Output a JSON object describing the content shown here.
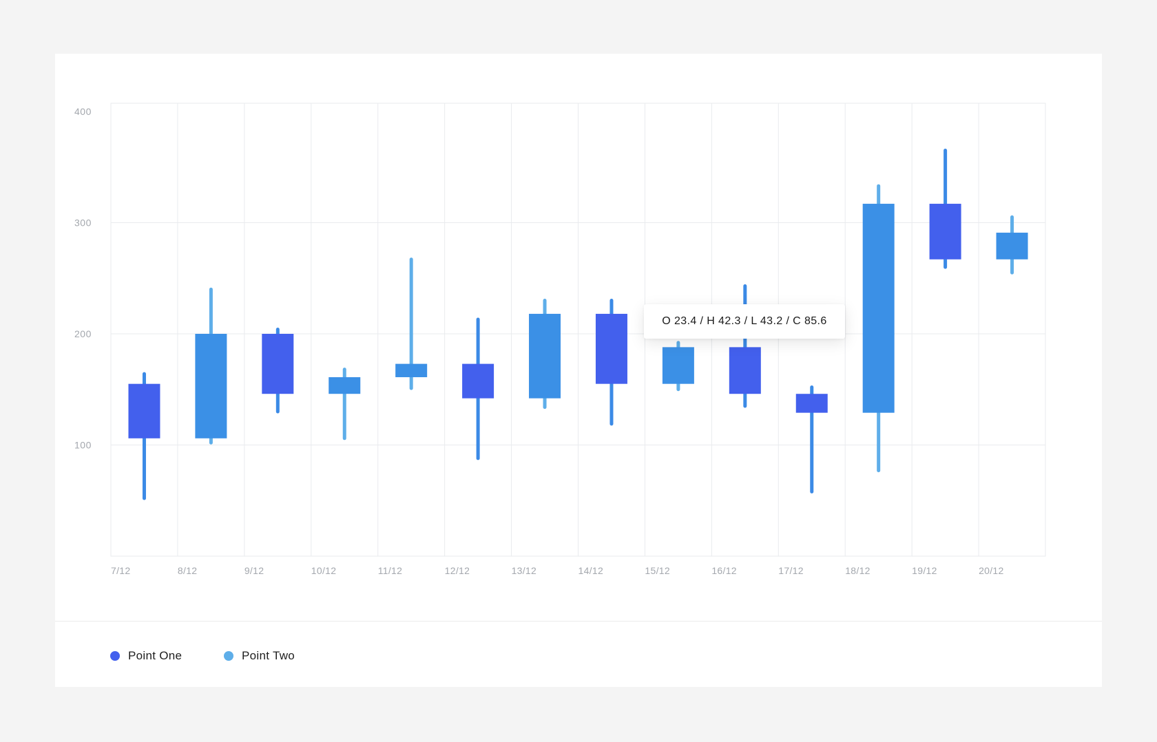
{
  "colors": {
    "point_one": "#4360ed",
    "point_two_body": "#3b90e6",
    "point_two_wick": "#5eaee9",
    "grid": "#e9ebee",
    "axis_text": "#a3a7ad"
  },
  "tooltip": {
    "text": "O 23.4 / H 42.3 / L 43.2 / C 85.6"
  },
  "legend": {
    "point_one": "Point One",
    "point_two": "Point Two"
  },
  "chart_data": {
    "type": "candlestick",
    "categories": [
      "7/12",
      "8/12",
      "9/12",
      "10/12",
      "11/12",
      "12/12",
      "13/12",
      "14/12",
      "15/12",
      "16/12",
      "17/12",
      "18/12",
      "19/12",
      "20/12"
    ],
    "y_ticks": [
      "400",
      "300",
      "200",
      "100"
    ],
    "ylim": [
      0,
      400
    ],
    "grid": true,
    "legend_position": "bottom-left",
    "candles": [
      {
        "x": "7/12",
        "series": "Point One",
        "open": 155,
        "close": 106,
        "high": 164,
        "low": 52
      },
      {
        "x": "8/12",
        "series": "Point Two",
        "open": 106,
        "close": 200,
        "high": 240,
        "low": 102
      },
      {
        "x": "9/12",
        "series": "Point One",
        "open": 200,
        "close": 146,
        "high": 204,
        "low": 130
      },
      {
        "x": "10/12",
        "series": "Point Two",
        "open": 146,
        "close": 161,
        "high": 168,
        "low": 106
      },
      {
        "x": "11/12",
        "series": "Point Two",
        "open": 161,
        "close": 173,
        "high": 267,
        "low": 151
      },
      {
        "x": "12/12",
        "series": "Point One",
        "open": 173,
        "close": 142,
        "high": 213,
        "low": 88
      },
      {
        "x": "13/12",
        "series": "Point Two",
        "open": 142,
        "close": 218,
        "high": 230,
        "low": 134
      },
      {
        "x": "14/12",
        "series": "Point One",
        "open": 218,
        "close": 155,
        "high": 230,
        "low": 119
      },
      {
        "x": "15/12",
        "series": "Point Two",
        "open": 155,
        "close": 188,
        "high": 192,
        "low": 150
      },
      {
        "x": "16/12",
        "series": "Point One",
        "open": 188,
        "close": 146,
        "high": 243,
        "low": 135
      },
      {
        "x": "17/12",
        "series": "Point One",
        "open": 146,
        "close": 129,
        "high": 152,
        "low": 58
      },
      {
        "x": "18/12",
        "series": "Point Two",
        "open": 129,
        "close": 317,
        "high": 333,
        "low": 77
      },
      {
        "x": "19/12",
        "series": "Point One",
        "open": 317,
        "close": 267,
        "high": 365,
        "low": 260
      },
      {
        "x": "20/12",
        "series": "Point Two",
        "open": 267,
        "close": 291,
        "high": 305,
        "low": 255
      }
    ]
  }
}
